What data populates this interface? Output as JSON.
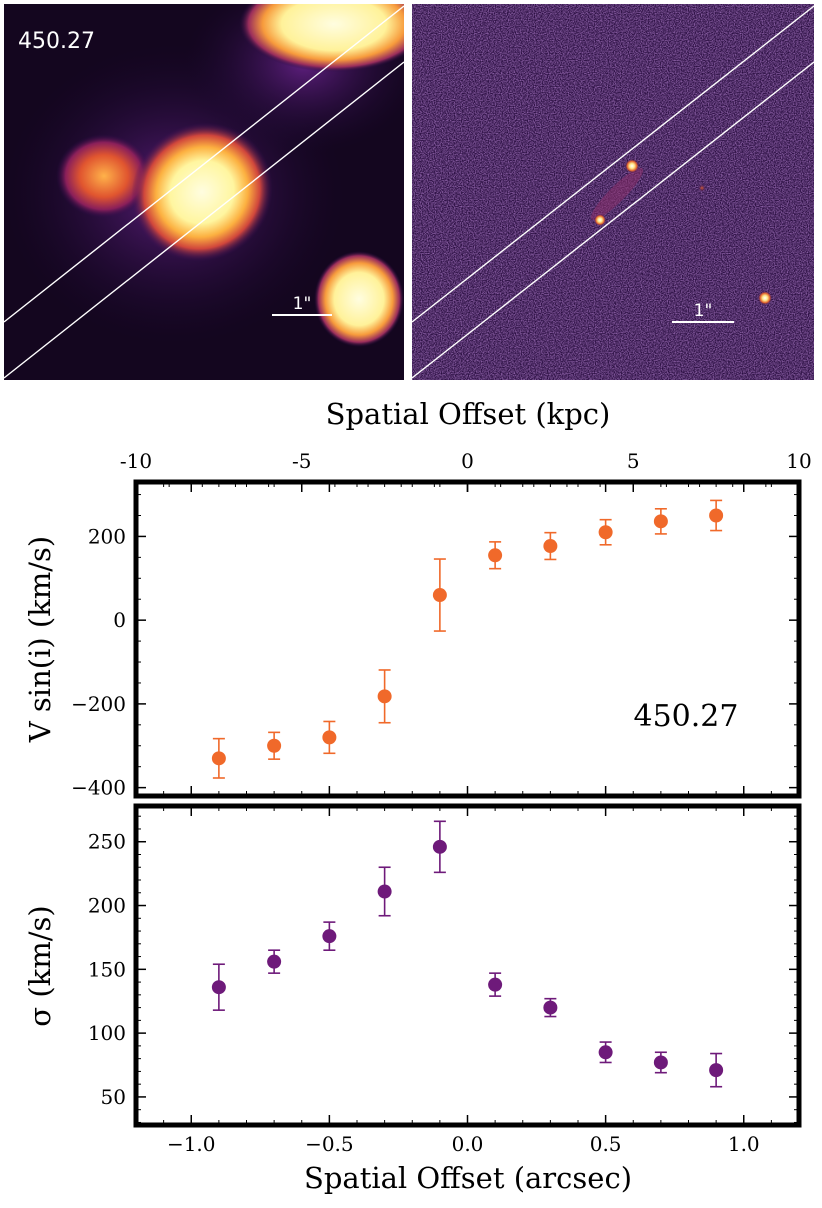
{
  "image_panels": {
    "left": {
      "label": "450.27",
      "scale_label": "1\""
    },
    "right": {
      "scale_label": "1\""
    }
  },
  "colors": {
    "velocity": "#f0692a",
    "dispersion": "#6e1a7a",
    "frame": "#000000",
    "slit": "#ffffff"
  },
  "chart_data": [
    {
      "type": "scatter",
      "name": "velocity",
      "top_xlabel": "Spatial Offset (kpc)",
      "top_xlim": [
        -10,
        10
      ],
      "top_ticks": [
        -10,
        -5,
        0,
        5,
        10
      ],
      "top_tick_labels": [
        "-10",
        "-5",
        "0",
        "5",
        "10"
      ],
      "xlim": [
        -1.2,
        1.2
      ],
      "ylabel": "V sin(i) (km/s)",
      "ylim": [
        -420,
        330
      ],
      "yticks": [
        -400,
        -200,
        0,
        200
      ],
      "ytick_labels": [
        "−400",
        "−200",
        "0",
        "200"
      ],
      "annotation": "450.27",
      "x": [
        -0.9,
        -0.7,
        -0.5,
        -0.3,
        -0.1,
        0.1,
        0.3,
        0.5,
        0.7,
        0.9
      ],
      "y": [
        -330,
        -300,
        -280,
        -182,
        60,
        155,
        177,
        210,
        236,
        250
      ],
      "yerr": [
        47,
        32,
        38,
        63,
        86,
        32,
        32,
        30,
        30,
        36
      ]
    },
    {
      "type": "scatter",
      "name": "dispersion",
      "xlabel": "Spatial Offset (arcsec)",
      "xlim": [
        -1.2,
        1.2
      ],
      "xticks": [
        -1.0,
        -0.5,
        0.0,
        0.5,
        1.0
      ],
      "xtick_labels": [
        "−1.0",
        "−0.5",
        "0.0",
        "0.5",
        "1.0"
      ],
      "ylabel": "σ (km/s)",
      "ylim": [
        28,
        278
      ],
      "yticks": [
        50,
        100,
        150,
        200,
        250
      ],
      "ytick_labels": [
        "50",
        "100",
        "150",
        "200",
        "250"
      ],
      "x": [
        -0.9,
        -0.7,
        -0.5,
        -0.3,
        -0.1,
        0.1,
        0.3,
        0.5,
        0.7,
        0.9
      ],
      "y": [
        136,
        156,
        176,
        211,
        246,
        138,
        120,
        85,
        77,
        71
      ],
      "yerr": [
        18,
        9,
        11,
        19,
        20,
        9,
        7,
        8,
        8,
        13
      ]
    }
  ]
}
